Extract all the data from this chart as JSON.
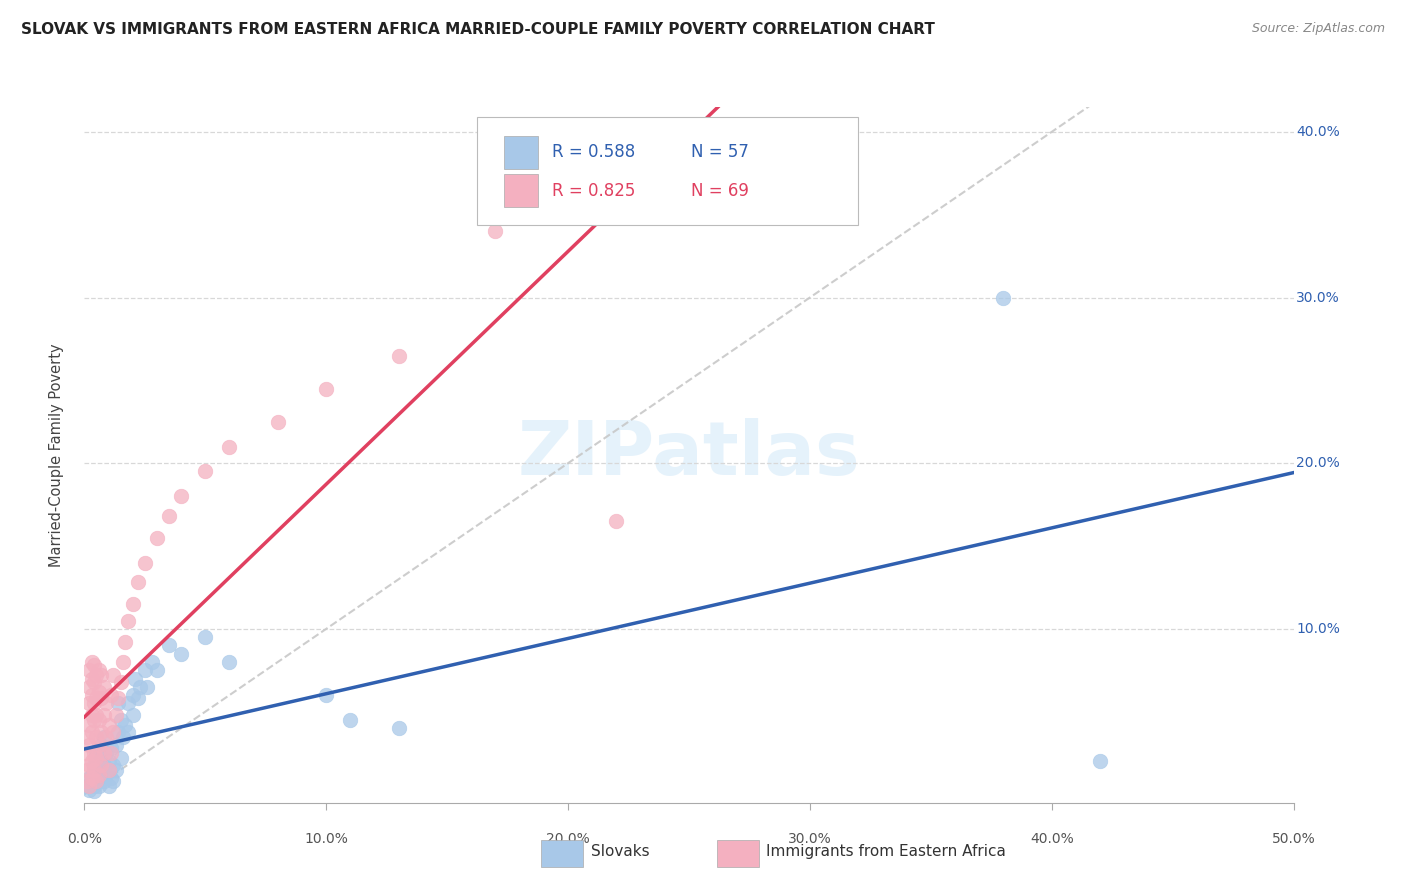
{
  "title": "SLOVAK VS IMMIGRANTS FROM EASTERN AFRICA MARRIED-COUPLE FAMILY POVERTY CORRELATION CHART",
  "source": "Source: ZipAtlas.com",
  "ylabel_label": "Married-Couple Family Poverty",
  "xmin": 0.0,
  "xmax": 0.5,
  "ymin": -0.005,
  "ymax": 0.415,
  "watermark": "ZIPatlas",
  "blue_R": "0.588",
  "blue_N": "57",
  "pink_R": "0.825",
  "pink_N": "69",
  "blue_color": "#a8c8e8",
  "pink_color": "#f4b0c0",
  "blue_line_color": "#3060b0",
  "pink_line_color": "#e04060",
  "diagonal_line_color": "#c8c8c8",
  "grid_color": "#d8d8d8",
  "blue_scatter": [
    [
      0.001,
      0.005
    ],
    [
      0.002,
      0.01
    ],
    [
      0.002,
      0.003
    ],
    [
      0.003,
      0.008
    ],
    [
      0.003,
      0.012
    ],
    [
      0.004,
      0.005
    ],
    [
      0.004,
      0.018
    ],
    [
      0.004,
      0.002
    ],
    [
      0.005,
      0.015
    ],
    [
      0.005,
      0.008
    ],
    [
      0.005,
      0.025
    ],
    [
      0.006,
      0.01
    ],
    [
      0.006,
      0.018
    ],
    [
      0.006,
      0.005
    ],
    [
      0.007,
      0.022
    ],
    [
      0.007,
      0.012
    ],
    [
      0.007,
      0.03
    ],
    [
      0.008,
      0.008
    ],
    [
      0.008,
      0.018
    ],
    [
      0.008,
      0.035
    ],
    [
      0.009,
      0.012
    ],
    [
      0.009,
      0.025
    ],
    [
      0.01,
      0.005
    ],
    [
      0.01,
      0.015
    ],
    [
      0.01,
      0.02
    ],
    [
      0.011,
      0.01
    ],
    [
      0.011,
      0.028
    ],
    [
      0.012,
      0.018
    ],
    [
      0.012,
      0.008
    ],
    [
      0.013,
      0.03
    ],
    [
      0.013,
      0.015
    ],
    [
      0.014,
      0.038
    ],
    [
      0.014,
      0.055
    ],
    [
      0.015,
      0.022
    ],
    [
      0.015,
      0.045
    ],
    [
      0.016,
      0.035
    ],
    [
      0.017,
      0.042
    ],
    [
      0.018,
      0.055
    ],
    [
      0.018,
      0.038
    ],
    [
      0.02,
      0.06
    ],
    [
      0.02,
      0.048
    ],
    [
      0.021,
      0.07
    ],
    [
      0.022,
      0.058
    ],
    [
      0.023,
      0.065
    ],
    [
      0.025,
      0.075
    ],
    [
      0.026,
      0.065
    ],
    [
      0.028,
      0.08
    ],
    [
      0.03,
      0.075
    ],
    [
      0.035,
      0.09
    ],
    [
      0.04,
      0.085
    ],
    [
      0.05,
      0.095
    ],
    [
      0.06,
      0.08
    ],
    [
      0.1,
      0.06
    ],
    [
      0.11,
      0.045
    ],
    [
      0.13,
      0.04
    ],
    [
      0.38,
      0.3
    ],
    [
      0.42,
      0.02
    ]
  ],
  "pink_scatter": [
    [
      0.001,
      0.008
    ],
    [
      0.001,
      0.015
    ],
    [
      0.001,
      0.025
    ],
    [
      0.001,
      0.035
    ],
    [
      0.002,
      0.005
    ],
    [
      0.002,
      0.018
    ],
    [
      0.002,
      0.03
    ],
    [
      0.002,
      0.042
    ],
    [
      0.002,
      0.055
    ],
    [
      0.002,
      0.065
    ],
    [
      0.002,
      0.075
    ],
    [
      0.003,
      0.01
    ],
    [
      0.003,
      0.02
    ],
    [
      0.003,
      0.038
    ],
    [
      0.003,
      0.048
    ],
    [
      0.003,
      0.06
    ],
    [
      0.003,
      0.07
    ],
    [
      0.003,
      0.08
    ],
    [
      0.004,
      0.015
    ],
    [
      0.004,
      0.025
    ],
    [
      0.004,
      0.045
    ],
    [
      0.004,
      0.055
    ],
    [
      0.004,
      0.068
    ],
    [
      0.004,
      0.078
    ],
    [
      0.005,
      0.008
    ],
    [
      0.005,
      0.022
    ],
    [
      0.005,
      0.035
    ],
    [
      0.005,
      0.048
    ],
    [
      0.005,
      0.058
    ],
    [
      0.005,
      0.072
    ],
    [
      0.006,
      0.012
    ],
    [
      0.006,
      0.03
    ],
    [
      0.006,
      0.045
    ],
    [
      0.006,
      0.062
    ],
    [
      0.006,
      0.075
    ],
    [
      0.007,
      0.018
    ],
    [
      0.007,
      0.038
    ],
    [
      0.007,
      0.058
    ],
    [
      0.007,
      0.072
    ],
    [
      0.008,
      0.025
    ],
    [
      0.008,
      0.048
    ],
    [
      0.008,
      0.065
    ],
    [
      0.009,
      0.035
    ],
    [
      0.009,
      0.055
    ],
    [
      0.01,
      0.015
    ],
    [
      0.01,
      0.042
    ],
    [
      0.011,
      0.025
    ],
    [
      0.011,
      0.06
    ],
    [
      0.012,
      0.038
    ],
    [
      0.012,
      0.072
    ],
    [
      0.013,
      0.048
    ],
    [
      0.014,
      0.058
    ],
    [
      0.015,
      0.068
    ],
    [
      0.016,
      0.08
    ],
    [
      0.017,
      0.092
    ],
    [
      0.018,
      0.105
    ],
    [
      0.02,
      0.115
    ],
    [
      0.022,
      0.128
    ],
    [
      0.025,
      0.14
    ],
    [
      0.03,
      0.155
    ],
    [
      0.035,
      0.168
    ],
    [
      0.04,
      0.18
    ],
    [
      0.05,
      0.195
    ],
    [
      0.06,
      0.21
    ],
    [
      0.08,
      0.225
    ],
    [
      0.1,
      0.245
    ],
    [
      0.13,
      0.265
    ],
    [
      0.17,
      0.34
    ],
    [
      0.22,
      0.165
    ]
  ]
}
